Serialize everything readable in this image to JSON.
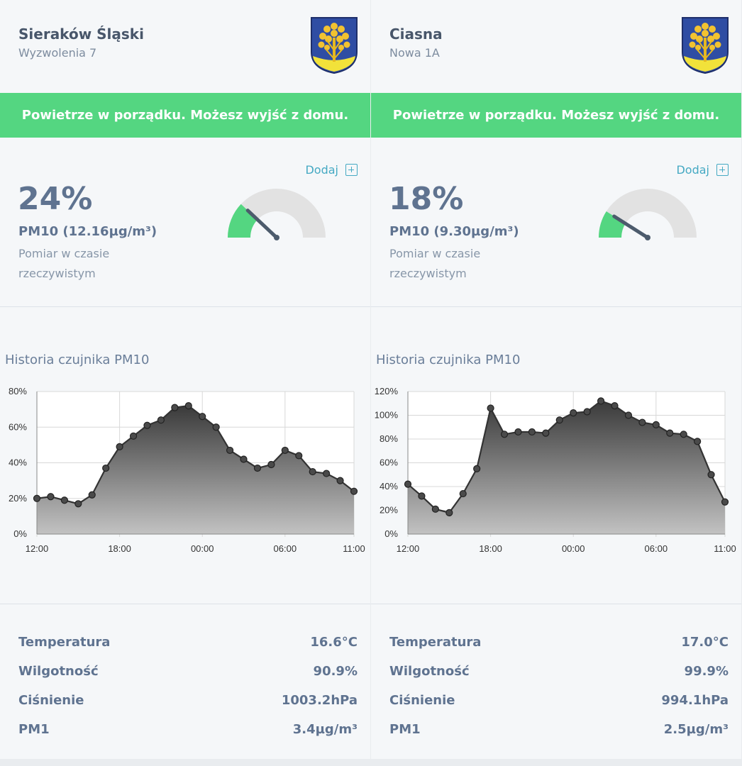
{
  "stations": [
    {
      "name": "Sieraków Śląski",
      "address": "Wyzwolenia 7",
      "banner": "Powietrze w porządku. Możesz wyjść z domu.",
      "add_label": "Dodaj",
      "percent": "24%",
      "percent_value": 24,
      "pm_label": "PM10 (12.16µg/m³)",
      "measurement_note": "Pomiar w czasie rzeczywistym",
      "history_title": "Historia czujnika PM10",
      "stats": [
        {
          "label": "Temperatura",
          "value": "16.6°C"
        },
        {
          "label": "Wilgotność",
          "value": "90.9%"
        },
        {
          "label": "Ciśnienie",
          "value": "1003.2hPa"
        },
        {
          "label": "PM1",
          "value": "3.4µg/m³"
        }
      ],
      "chart_data": {
        "type": "area",
        "title": "Historia czujnika PM10",
        "xlabel": "",
        "ylabel": "",
        "x_ticks": [
          "12:00",
          "18:00",
          "00:00",
          "06:00",
          "11:00"
        ],
        "y_ticks": [
          "0%",
          "20%",
          "40%",
          "60%",
          "80%"
        ],
        "ylim": [
          0,
          80
        ],
        "x": [
          "12:00",
          "13:00",
          "14:00",
          "15:00",
          "16:00",
          "17:00",
          "18:00",
          "19:00",
          "20:00",
          "21:00",
          "22:00",
          "23:00",
          "00:00",
          "01:00",
          "02:00",
          "03:00",
          "04:00",
          "05:00",
          "06:00",
          "07:00",
          "08:00",
          "09:00",
          "10:00",
          "11:00"
        ],
        "values": [
          20,
          21,
          19,
          17,
          22,
          37,
          49,
          55,
          61,
          64,
          71,
          72,
          66,
          60,
          47,
          42,
          37,
          39,
          47,
          44,
          35,
          34,
          30,
          24
        ]
      }
    },
    {
      "name": "Ciasna",
      "address": "Nowa 1A",
      "banner": "Powietrze w porządku. Możesz wyjść z domu.",
      "add_label": "Dodaj",
      "percent": "18%",
      "percent_value": 18,
      "pm_label": "PM10 (9.30µg/m³)",
      "measurement_note": "Pomiar w czasie rzeczywistym",
      "history_title": "Historia czujnika PM10",
      "stats": [
        {
          "label": "Temperatura",
          "value": "17.0°C"
        },
        {
          "label": "Wilgotność",
          "value": "99.9%"
        },
        {
          "label": "Ciśnienie",
          "value": "994.1hPa"
        },
        {
          "label": "PM1",
          "value": "2.5µg/m³"
        }
      ],
      "chart_data": {
        "type": "area",
        "title": "Historia czujnika PM10",
        "xlabel": "",
        "ylabel": "",
        "x_ticks": [
          "12:00",
          "18:00",
          "00:00",
          "06:00",
          "11:00"
        ],
        "y_ticks": [
          "0%",
          "20%",
          "40%",
          "60%",
          "80%",
          "100%",
          "120%"
        ],
        "ylim": [
          0,
          120
        ],
        "x": [
          "12:00",
          "13:00",
          "14:00",
          "15:00",
          "16:00",
          "17:00",
          "18:00",
          "19:00",
          "20:00",
          "21:00",
          "22:00",
          "23:00",
          "00:00",
          "01:00",
          "02:00",
          "03:00",
          "04:00",
          "05:00",
          "06:00",
          "07:00",
          "08:00",
          "09:00",
          "10:00",
          "11:00"
        ],
        "values": [
          42,
          32,
          21,
          18,
          34,
          55,
          106,
          84,
          86,
          86,
          85,
          96,
          102,
          103,
          112,
          108,
          100,
          94,
          92,
          85,
          84,
          78,
          50,
          27
        ]
      }
    }
  ],
  "colors": {
    "banner_good": "#54d681",
    "accent_link": "#45a9c3",
    "gauge_fill": "#54d681",
    "gauge_track": "#e2e2e2",
    "gauge_needle": "#4c5b6c"
  },
  "icons": {
    "coat_of_arms": "coat-of-arms-icon",
    "add": "plus-square-icon"
  }
}
